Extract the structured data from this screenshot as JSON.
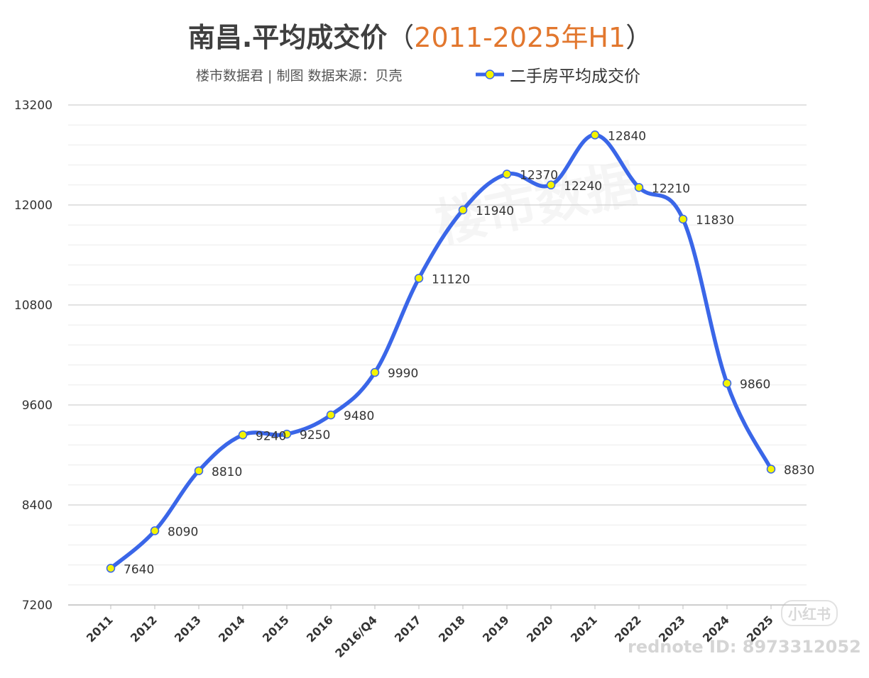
{
  "header": {
    "title_main": "南昌.平均成交价",
    "title_paren_open": "（",
    "title_highlight": "2011-2025年H1",
    "title_paren_close": "）",
    "credit": "楼市数据君 | 制图   数据来源：贝壳"
  },
  "watermark": {
    "center": "楼市数据",
    "brand": "小红书",
    "source_id": "rednote ID: 8973312052"
  },
  "colors": {
    "line": "#3a66e8",
    "marker_fill": "#f4f400",
    "marker_stroke": "#3a66e8",
    "title_highlight": "#e2772e"
  },
  "chart_data": {
    "type": "line",
    "title": "南昌.平均成交价（2011-2025年H1）",
    "categories": [
      "2011",
      "2012",
      "2013",
      "2014",
      "2015",
      "2016",
      "2016/Q4",
      "2017",
      "2018",
      "2019",
      "2020",
      "2021",
      "2022",
      "2023",
      "2024",
      "2025"
    ],
    "series": [
      {
        "name": "二手房平均成交价",
        "values": [
          7640,
          8090,
          8810,
          9240,
          9250,
          9480,
          9990,
          11120,
          11940,
          12370,
          12240,
          12840,
          12210,
          11830,
          9860,
          8830
        ]
      }
    ],
    "yticks": [
      7200,
      8400,
      9600,
      10800,
      12000,
      13200
    ],
    "ylim": [
      7200,
      13200
    ],
    "grid": true,
    "legend_position": "top-right",
    "smooth": true
  }
}
